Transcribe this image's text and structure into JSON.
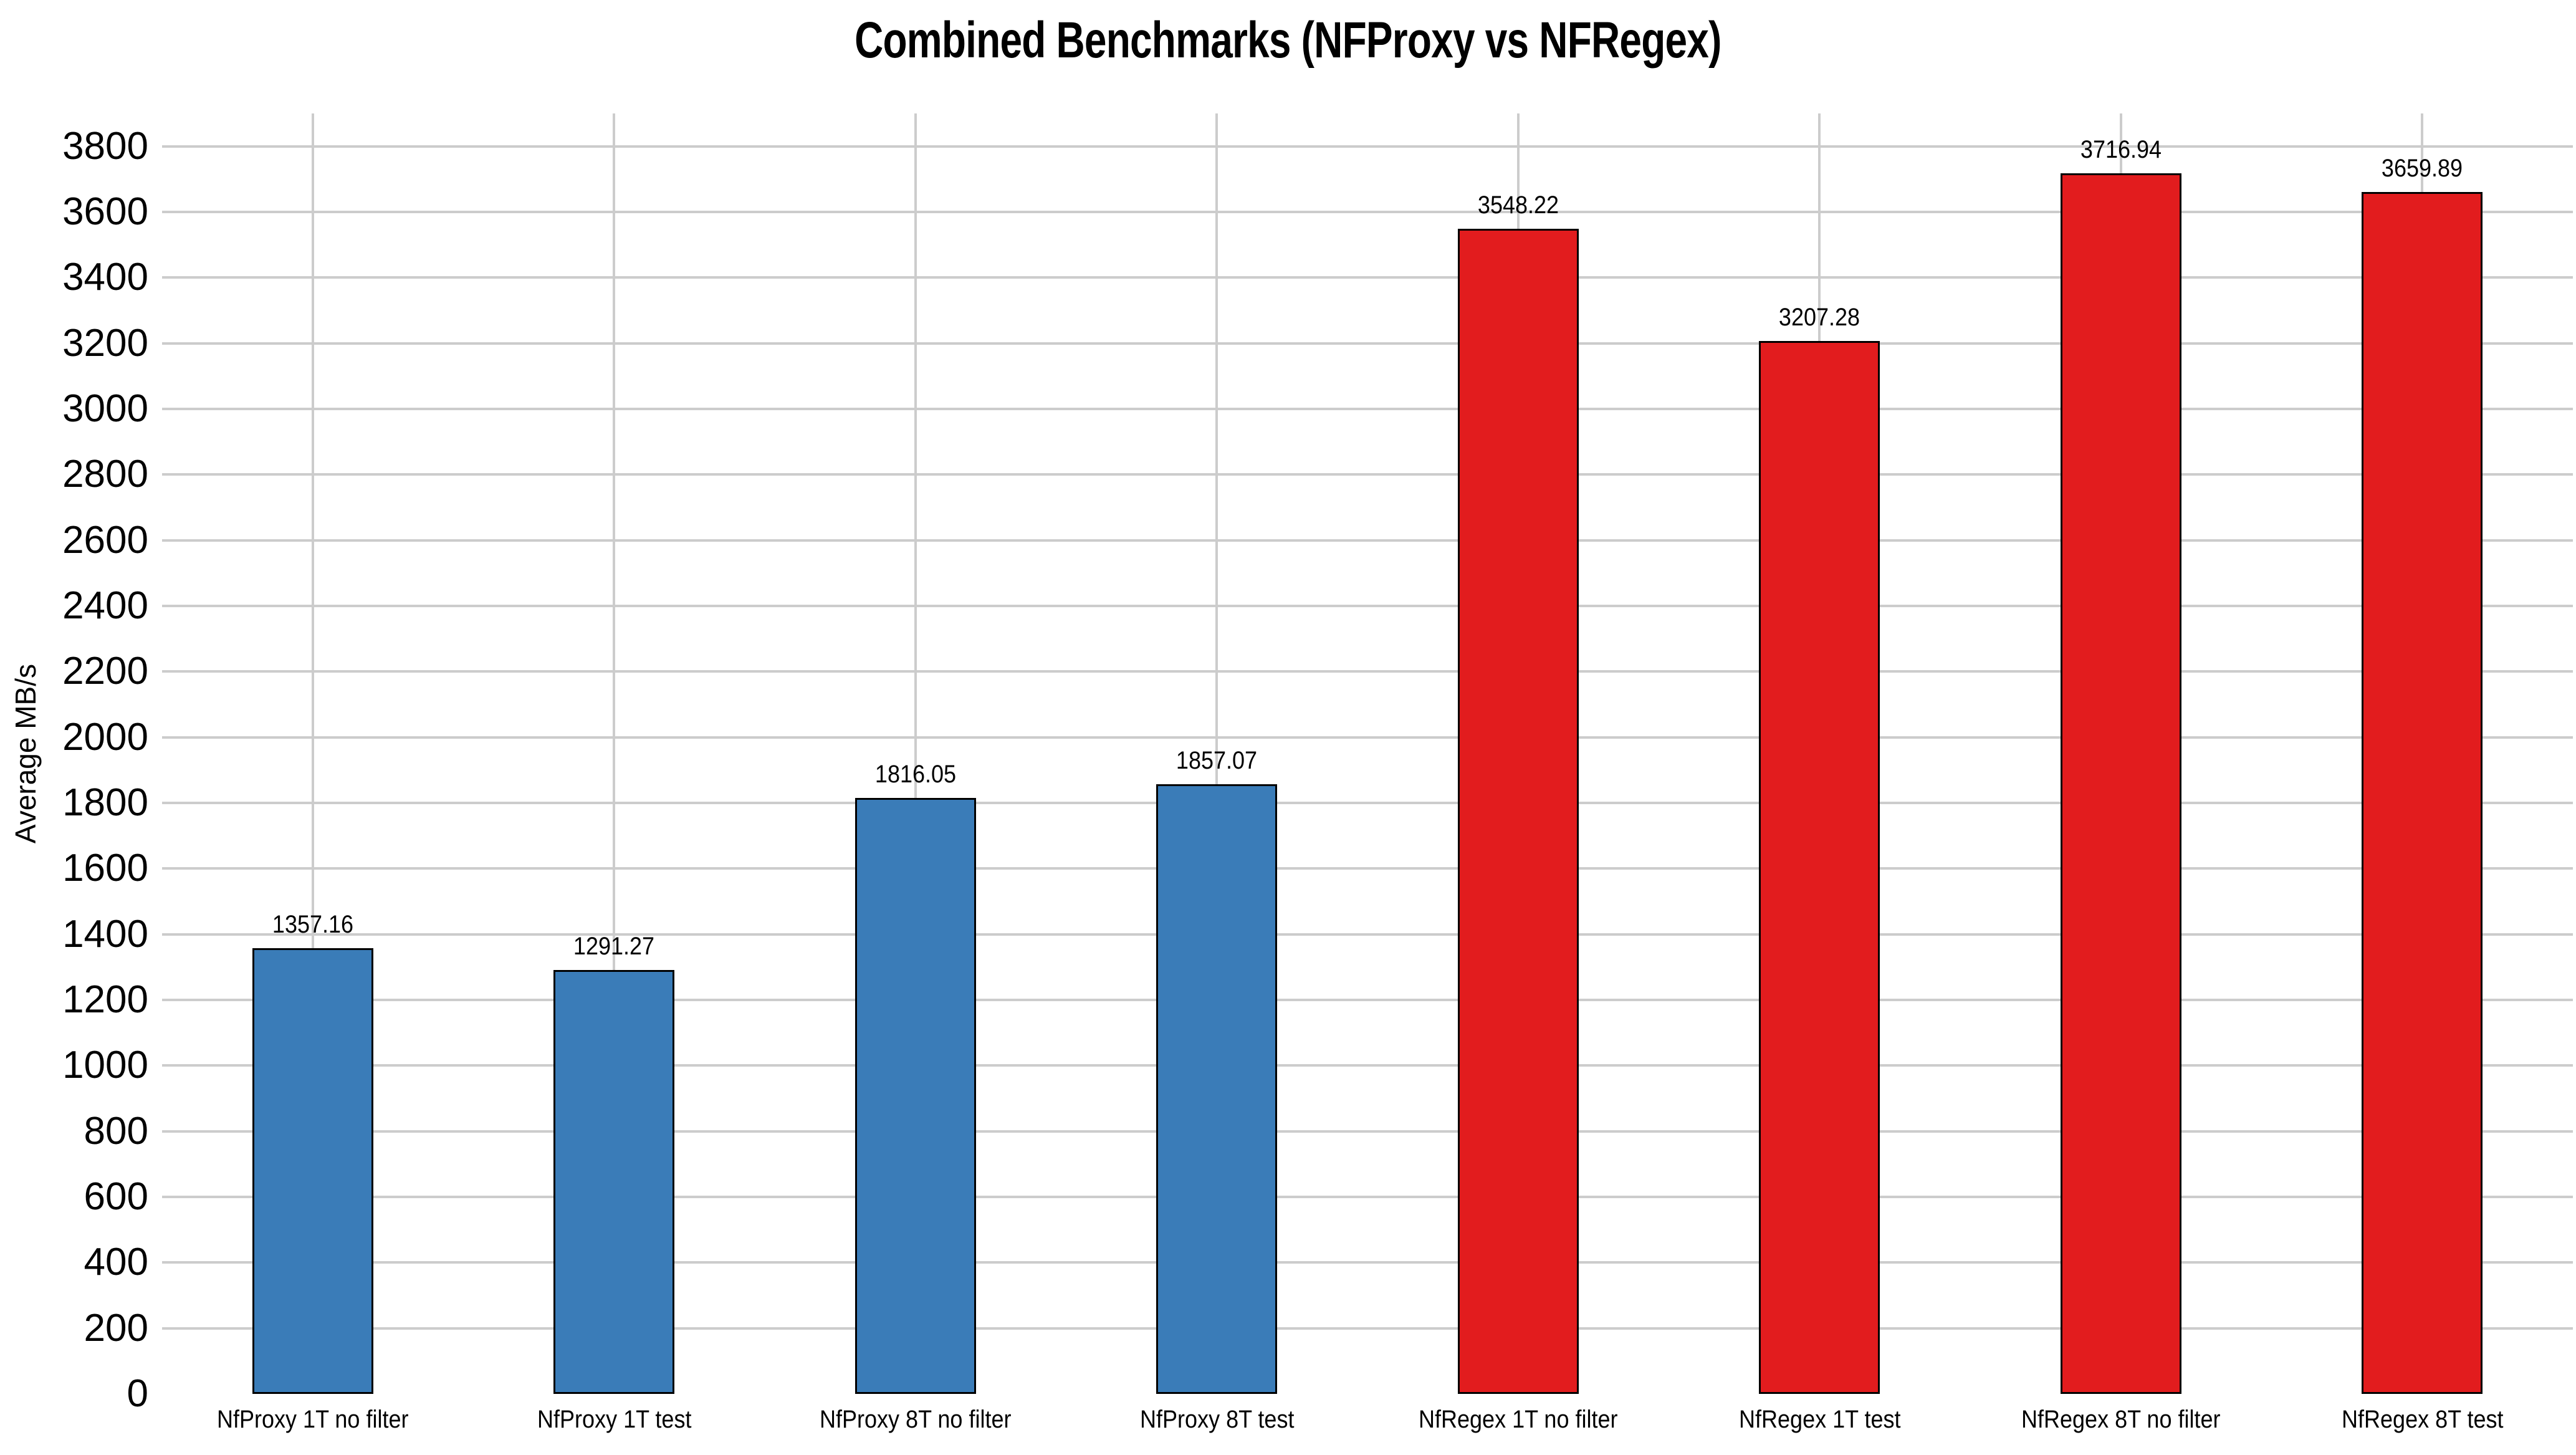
{
  "chart_data": {
    "type": "bar",
    "title": "Combined Benchmarks (NFProxy vs NFRegex)",
    "ylabel": "Average MB/s",
    "xlabel": "",
    "categories": [
      "NfProxy 1T no filter",
      "NfProxy 1T test",
      "NfProxy 8T no filter",
      "NfProxy 8T test",
      "NfRegex 1T no filter",
      "NfRegex 1T test",
      "NfRegex 8T no filter",
      "NfRegex 8T test"
    ],
    "values": [
      1357.16,
      1291.27,
      1816.05,
      1857.07,
      3548.22,
      3207.28,
      3716.94,
      3659.89
    ],
    "value_labels": [
      "1357.16",
      "1291.27",
      "1816.05",
      "1857.07",
      "3548.22",
      "3207.28",
      "3716.94",
      "3659.89"
    ],
    "bar_groups": [
      "nfproxy",
      "nfproxy",
      "nfproxy",
      "nfproxy",
      "nfregex",
      "nfregex",
      "nfregex",
      "nfregex"
    ],
    "group_colors": {
      "nfproxy": "#3a7cb8",
      "nfregex": "#e21c1e"
    },
    "bar_edge_color": "#000000",
    "grid_color": "#cccccc",
    "grid": "both",
    "legend_position": "none",
    "ylim": [
      0,
      3900
    ],
    "ytick_min": 0,
    "ytick_max": 3800,
    "ytick_step": 200
  }
}
